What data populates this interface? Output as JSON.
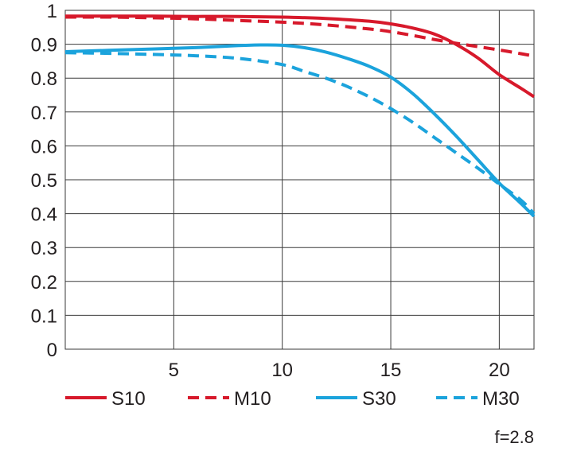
{
  "chart_data": {
    "type": "line",
    "xlim": [
      0,
      21.6
    ],
    "ylim": [
      0,
      1
    ],
    "x_ticks": [
      5,
      10,
      15,
      20
    ],
    "y_ticks": [
      0,
      0.1,
      0.2,
      0.3,
      0.4,
      0.5,
      0.6,
      0.7,
      0.8,
      0.9,
      1
    ],
    "x_tick_labels": [
      "5",
      "10",
      "15",
      "20"
    ],
    "y_tick_labels": [
      "0",
      "0.1",
      "0.2",
      "0.3",
      "0.4",
      "0.5",
      "0.6",
      "0.7",
      "0.8",
      "0.9",
      "1"
    ],
    "grid": true,
    "legend_position": "bottom",
    "annotation": "f=2.8",
    "series": [
      {
        "name": "S10",
        "color": "#d7192b",
        "style": "solid",
        "x": [
          0,
          2,
          4,
          6,
          8,
          10,
          12,
          14,
          15,
          16,
          17,
          18,
          19,
          20,
          21,
          21.6
        ],
        "y": [
          0.983,
          0.983,
          0.983,
          0.982,
          0.982,
          0.98,
          0.976,
          0.968,
          0.96,
          0.948,
          0.93,
          0.9,
          0.86,
          0.81,
          0.77,
          0.745
        ]
      },
      {
        "name": "M10",
        "color": "#d7192b",
        "style": "dashed",
        "x": [
          0,
          2,
          4,
          6,
          8,
          10,
          12,
          14,
          15,
          16,
          17,
          18,
          19,
          20,
          21,
          21.6
        ],
        "y": [
          0.98,
          0.98,
          0.978,
          0.975,
          0.97,
          0.965,
          0.957,
          0.945,
          0.937,
          0.926,
          0.914,
          0.903,
          0.893,
          0.883,
          0.872,
          0.865
        ]
      },
      {
        "name": "S30",
        "color": "#1ba3dc",
        "style": "solid",
        "x": [
          0,
          2,
          4,
          6,
          8,
          9,
          10,
          11,
          12,
          13,
          14,
          15,
          16,
          17,
          18,
          19,
          20,
          21,
          21.6
        ],
        "y": [
          0.878,
          0.882,
          0.886,
          0.89,
          0.896,
          0.898,
          0.897,
          0.89,
          0.877,
          0.858,
          0.835,
          0.803,
          0.755,
          0.695,
          0.63,
          0.56,
          0.49,
          0.43,
          0.392
        ]
      },
      {
        "name": "M30",
        "color": "#1ba3dc",
        "style": "dashed",
        "x": [
          0,
          2,
          4,
          6,
          8,
          10,
          11,
          12,
          13,
          14,
          15,
          16,
          17,
          18,
          19,
          20,
          21,
          21.6
        ],
        "y": [
          0.875,
          0.873,
          0.87,
          0.866,
          0.858,
          0.84,
          0.82,
          0.8,
          0.775,
          0.745,
          0.71,
          0.67,
          0.625,
          0.58,
          0.535,
          0.487,
          0.44,
          0.4
        ]
      }
    ]
  }
}
